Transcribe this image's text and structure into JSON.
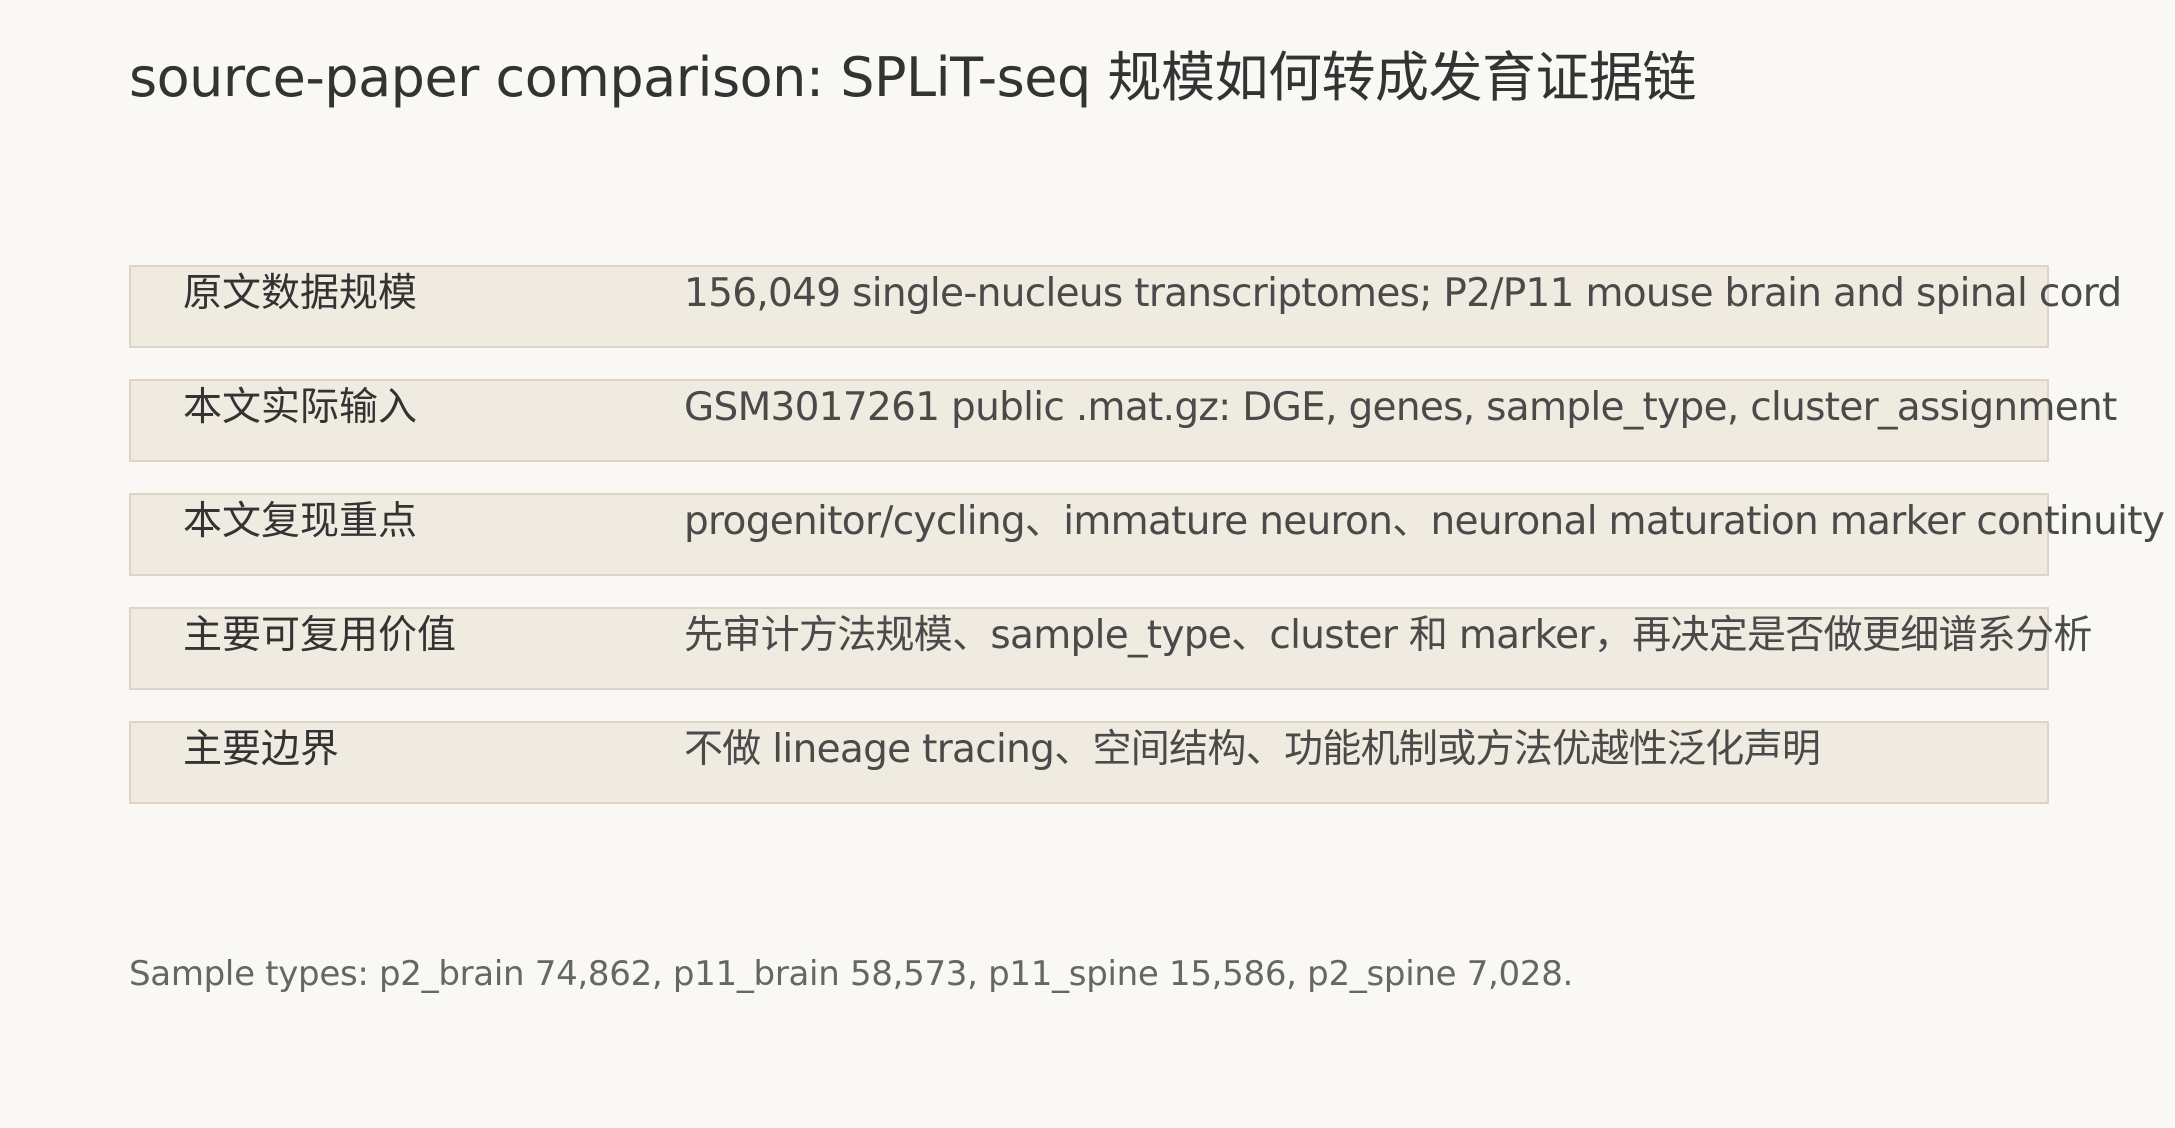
{
  "title": "source-paper comparison: SPLiT-seq 规模如何转成发育证据链",
  "rows": [
    {
      "label": "原文数据规模",
      "value": "156,049 single-nucleus transcriptomes; P2/P11 mouse brain and spinal cord"
    },
    {
      "label": "本文实际输入",
      "value": "GSM3017261 public .mat.gz: DGE, genes, sample_type, cluster_assignment"
    },
    {
      "label": "本文复现重点",
      "value": "progenitor/cycling、immature neuron、neuronal maturation marker continuity"
    },
    {
      "label": "主要可复用价值",
      "value": "先审计方法规模、sample_type、cluster 和 marker，再决定是否做更细谱系分析"
    },
    {
      "label": "主要边界",
      "value": "不做 lineage tracing、空间结构、功能机制或方法优越性泛化声明"
    }
  ],
  "footnote": "Sample types: p2_brain 74,862, p11_brain 58,573, p11_spine 15,586, p2_spine 7,028."
}
